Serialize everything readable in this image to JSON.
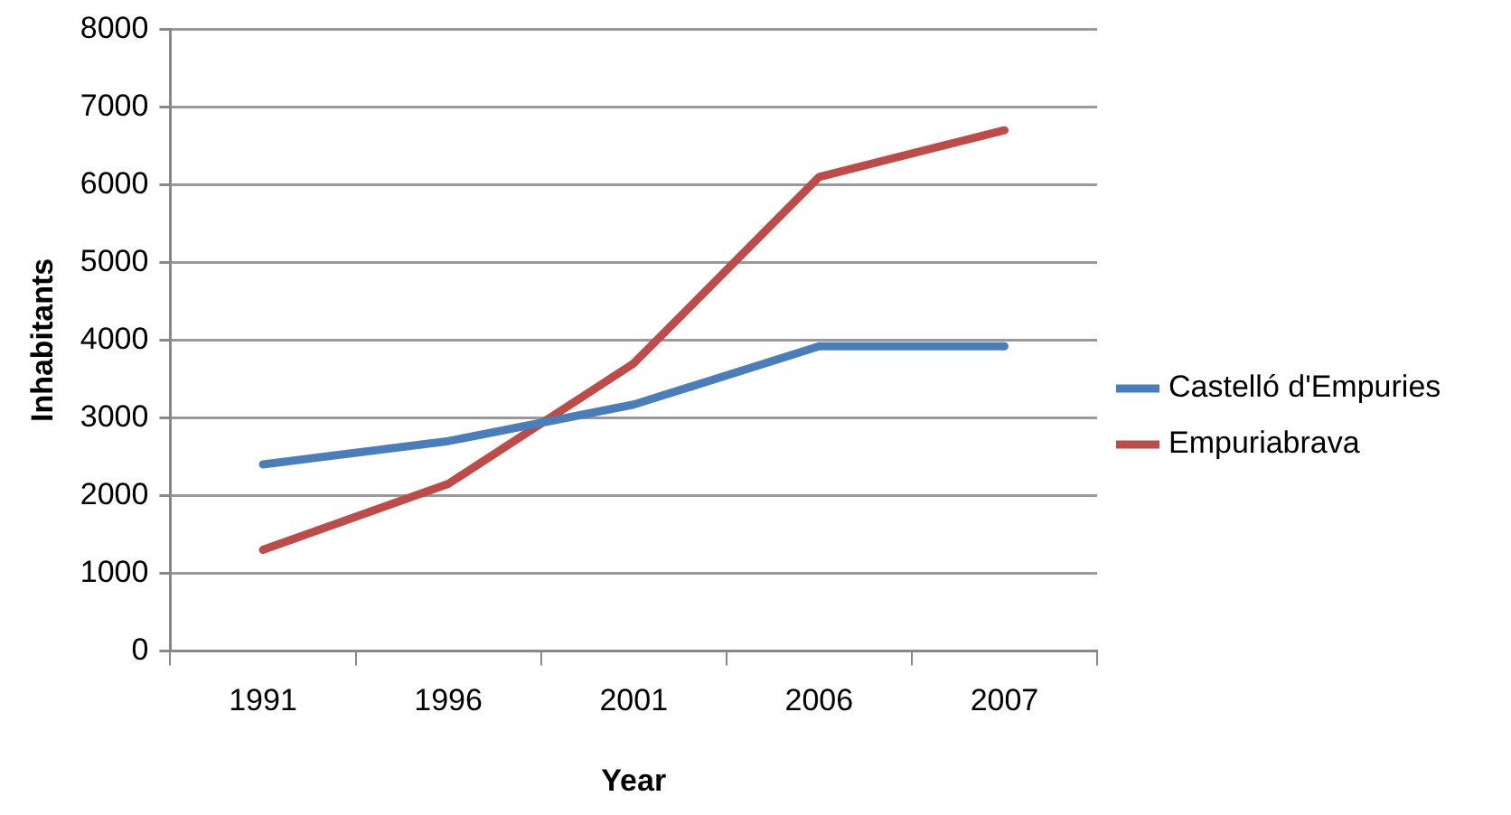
{
  "chart_data": {
    "type": "line",
    "xlabel": "Year",
    "ylabel": "Inhabitants",
    "categories": [
      "1991",
      "1996",
      "2001",
      "2006",
      "2007"
    ],
    "series": [
      {
        "name": "Castelló d'Empuries",
        "color": "#4a7ebb",
        "values": [
          2400,
          2700,
          3170,
          3920,
          3920
        ]
      },
      {
        "name": "Empuriabrava",
        "color": "#be4b48",
        "values": [
          1300,
          2150,
          3700,
          6100,
          6700
        ]
      }
    ],
    "ylim": [
      0,
      8000
    ],
    "yticks": [
      0,
      1000,
      2000,
      3000,
      4000,
      5000,
      6000,
      7000,
      8000
    ],
    "grid": "y",
    "legend": "right",
    "marker": "none",
    "line_style": "solid"
  }
}
